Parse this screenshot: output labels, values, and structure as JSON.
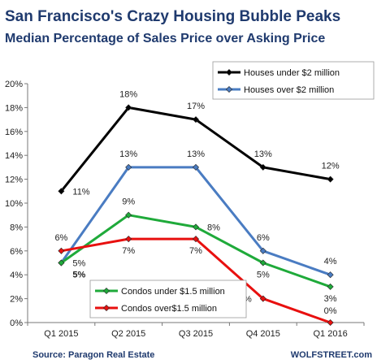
{
  "chart_data": {
    "type": "line",
    "title": "San Francisco's Crazy Housing Bubble Peaks",
    "subtitle": "Median Percentage of Sales Price over Asking Price",
    "categories": [
      "Q1 2015",
      "Q2 2015",
      "Q3 2015",
      "Q4 2015",
      "Q1 2016"
    ],
    "ylim": [
      0,
      20
    ],
    "yticks": [
      "0%",
      "2%",
      "4%",
      "6%",
      "8%",
      "10%",
      "12%",
      "14%",
      "16%",
      "18%",
      "20%"
    ],
    "grid": false,
    "series": [
      {
        "name": "Houses under $2 million",
        "color": "#000000",
        "values": [
          11,
          18,
          17,
          13,
          12
        ],
        "labels": [
          "11%",
          "18%",
          "17%",
          "13%",
          "12%"
        ]
      },
      {
        "name": "Houses over $2 million",
        "color": "#4a7cc2",
        "values": [
          5,
          13,
          13,
          6,
          4
        ],
        "labels": [
          "5%",
          "13%",
          "13%",
          "6%",
          "4%"
        ]
      },
      {
        "name": "Condos under $1.5 million",
        "color": "#1faa3a",
        "values": [
          5,
          9,
          8,
          5,
          3
        ],
        "labels": [
          "5%",
          "9%",
          "8%",
          "5%",
          "3%"
        ]
      },
      {
        "name": "Condos over$1.5 million",
        "color": "#e8100f",
        "values": [
          6,
          7,
          7,
          2,
          0
        ],
        "labels": [
          "6%",
          "7%",
          "7%",
          "2%",
          "0%"
        ]
      }
    ],
    "source": "Source: Paragon Real Estate",
    "credit": "WOLFSTREET.com"
  }
}
